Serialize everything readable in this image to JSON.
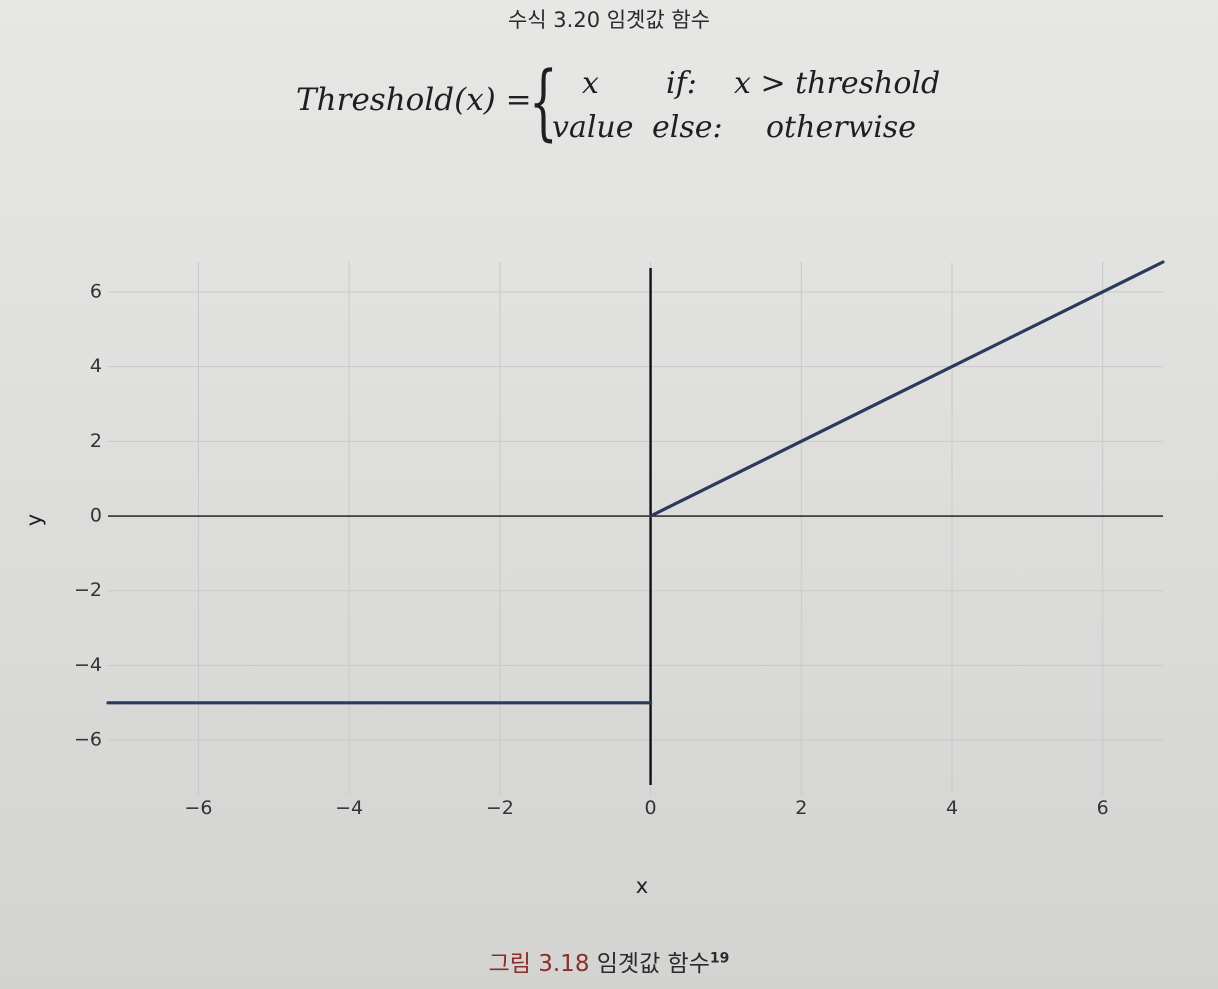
{
  "equation": {
    "heading": "수식 3.20 임곗값 함수",
    "lhs": "Threshold(x) =",
    "rows": [
      {
        "value": "x",
        "condition": "if:",
        "rule": "x > threshold"
      },
      {
        "value": "value",
        "condition": "else:",
        "rule": "otherwise"
      }
    ]
  },
  "caption": {
    "label": "그림 3.18",
    "text": "임곗값 함수",
    "footnote": "19"
  },
  "chart_data": {
    "type": "line",
    "title": "",
    "xlabel": "x",
    "ylabel": "y",
    "xlim": [
      -7.2,
      6.8
    ],
    "ylim": [
      -7.2,
      6.8
    ],
    "xticks": [
      -6,
      -4,
      -2,
      0,
      2,
      4,
      6
    ],
    "yticks": [
      -6,
      -4,
      -2,
      0,
      2,
      4,
      6
    ],
    "xtick_labels": [
      "−6",
      "−4",
      "−2",
      "0",
      "2",
      "4",
      "6"
    ],
    "ytick_labels": [
      "−6",
      "−4",
      "−2",
      "0",
      "2",
      "4",
      "6"
    ],
    "grid": true,
    "line_color": "#2b3a5c",
    "axis_color": "#111111",
    "grid_color": "#c9c9c9",
    "series": [
      {
        "x": [
          -7.2,
          0
        ],
        "y": [
          -5,
          -5
        ]
      },
      {
        "x": [
          0,
          6.8
        ],
        "y": [
          0,
          6.8
        ]
      }
    ]
  }
}
